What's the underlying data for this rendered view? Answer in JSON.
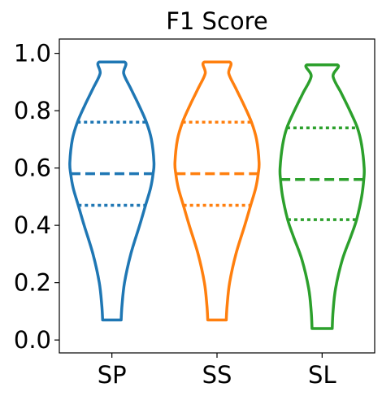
{
  "chart_data": {
    "type": "violin",
    "title": "F1 Score",
    "xlabel": "",
    "ylabel": "",
    "ylim": [
      -0.045,
      1.05
    ],
    "yticks": [
      0.0,
      0.2,
      0.4,
      0.6,
      0.8,
      1.0
    ],
    "ytick_labels": [
      "0.0",
      "0.2",
      "0.4",
      "0.6",
      "0.8",
      "1.0"
    ],
    "categories": [
      "SP",
      "SS",
      "SL"
    ],
    "grid": false,
    "series": [
      {
        "category": "SP",
        "color": "#1f77b4",
        "min": 0.07,
        "max": 0.97,
        "q1": 0.47,
        "median": 0.58,
        "q3": 0.76,
        "density": [
          [
            0.07,
            0.22
          ],
          [
            0.12,
            0.24
          ],
          [
            0.2,
            0.3
          ],
          [
            0.3,
            0.45
          ],
          [
            0.4,
            0.66
          ],
          [
            0.47,
            0.8
          ],
          [
            0.53,
            0.92
          ],
          [
            0.58,
            0.98
          ],
          [
            0.62,
            1.0
          ],
          [
            0.7,
            0.94
          ],
          [
            0.76,
            0.82
          ],
          [
            0.82,
            0.64
          ],
          [
            0.88,
            0.44
          ],
          [
            0.93,
            0.28
          ],
          [
            0.97,
            0.3
          ]
        ]
      },
      {
        "category": "SS",
        "color": "#ff7f0e",
        "min": 0.07,
        "max": 0.97,
        "q1": 0.47,
        "median": 0.58,
        "q3": 0.76,
        "density": [
          [
            0.07,
            0.22
          ],
          [
            0.12,
            0.24
          ],
          [
            0.2,
            0.3
          ],
          [
            0.3,
            0.45
          ],
          [
            0.4,
            0.66
          ],
          [
            0.47,
            0.8
          ],
          [
            0.53,
            0.92
          ],
          [
            0.58,
            0.98
          ],
          [
            0.62,
            1.0
          ],
          [
            0.7,
            0.94
          ],
          [
            0.76,
            0.82
          ],
          [
            0.82,
            0.64
          ],
          [
            0.88,
            0.44
          ],
          [
            0.93,
            0.28
          ],
          [
            0.97,
            0.3
          ]
        ]
      },
      {
        "category": "SL",
        "color": "#2ca02c",
        "min": 0.04,
        "max": 0.96,
        "q1": 0.42,
        "median": 0.56,
        "q3": 0.74,
        "density": [
          [
            0.04,
            0.24
          ],
          [
            0.1,
            0.26
          ],
          [
            0.18,
            0.32
          ],
          [
            0.28,
            0.48
          ],
          [
            0.36,
            0.68
          ],
          [
            0.42,
            0.82
          ],
          [
            0.5,
            0.94
          ],
          [
            0.56,
            0.99
          ],
          [
            0.6,
            1.0
          ],
          [
            0.68,
            0.94
          ],
          [
            0.74,
            0.84
          ],
          [
            0.8,
            0.66
          ],
          [
            0.86,
            0.46
          ],
          [
            0.92,
            0.26
          ],
          [
            0.96,
            0.36
          ]
        ]
      }
    ]
  }
}
